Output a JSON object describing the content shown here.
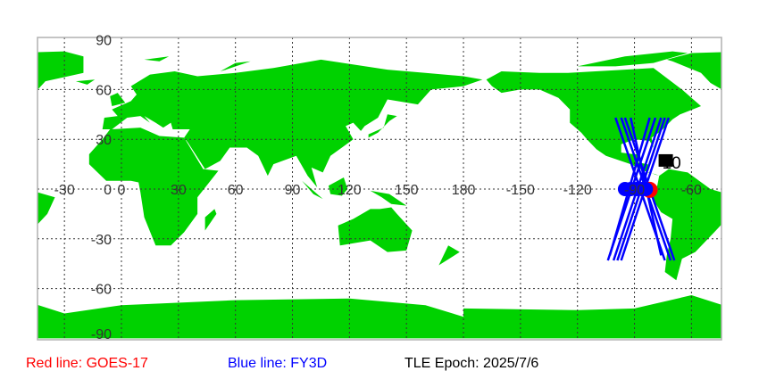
{
  "colors": {
    "land": "#00d200",
    "ocean": "#ffffff",
    "red_track": "#ff0000",
    "blue_track": "#0000ff",
    "grid": "#333333"
  },
  "map": {
    "projection": "equirectangular",
    "lon_range": [
      -44,
      316
    ],
    "lat_range": [
      -90,
      90
    ],
    "lon_labels": [
      "-30",
      "0",
      "30",
      "60",
      "90",
      "120",
      "150",
      "180",
      "-150",
      "-120",
      "-90",
      "-60"
    ],
    "lon_label_values": [
      -30,
      0,
      30,
      60,
      90,
      120,
      150,
      180,
      210,
      240,
      270,
      300
    ],
    "lat_labels": [
      "90",
      "60",
      "30",
      "0",
      "-30",
      "-60",
      "-90"
    ],
    "lat_label_values": [
      90,
      60,
      30,
      0,
      -30,
      -60,
      -90
    ],
    "satellite_label": "10"
  },
  "tracks": {
    "goes17": {
      "position": [
        -82,
        -0.5
      ]
    },
    "fy3d": {
      "segments": [
        [
          -79,
          43,
          -104,
          -43
        ],
        [
          -76,
          43,
          -101,
          -43
        ],
        [
          -74,
          43,
          -99,
          -43
        ],
        [
          -72,
          43,
          -97,
          -43
        ],
        [
          -82,
          43,
          -103,
          -40
        ],
        [
          -100,
          43,
          -74,
          -43
        ],
        [
          -97,
          43,
          -71,
          -43
        ],
        [
          -95,
          43,
          -69,
          -43
        ],
        [
          -92,
          43,
          -76,
          -40
        ]
      ],
      "points": [
        [
          -95,
          0
        ],
        [
          -92,
          0
        ],
        [
          -89,
          0
        ],
        [
          -86,
          0
        ],
        [
          -84,
          0
        ]
      ]
    }
  },
  "legend": {
    "red": "Red line: GOES-17",
    "blue": "Blue line: FY3D",
    "epoch": "TLE Epoch: 2025/7/6"
  }
}
